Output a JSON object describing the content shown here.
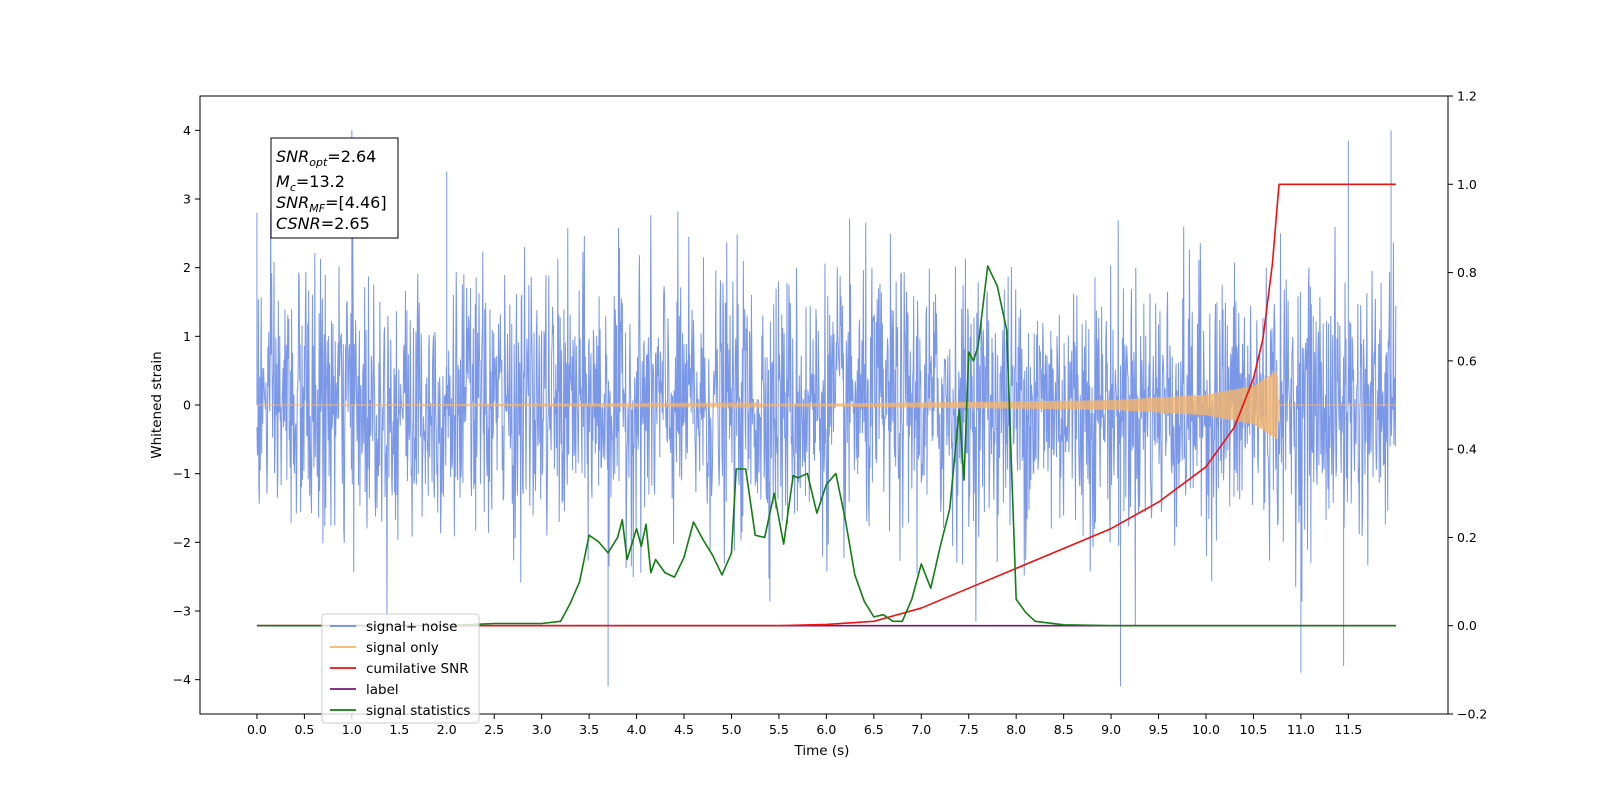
{
  "chart_data": {
    "type": "line",
    "xlabel": "Time (s)",
    "ylabel": "Whitened strain",
    "xlim": [
      -0.6,
      12.55
    ],
    "ylim": [
      -4.5,
      4.5
    ],
    "ylim_right": [
      -0.2,
      1.2
    ],
    "x_ticks": [
      "0.0",
      "0.5",
      "1.0",
      "1.5",
      "2.0",
      "2.5",
      "3.0",
      "3.5",
      "4.0",
      "4.5",
      "5.0",
      "5.5",
      "6.0",
      "6.5",
      "7.0",
      "7.5",
      "8.0",
      "8.5",
      "9.0",
      "9.5",
      "10.0",
      "10.5",
      "11.0",
      "11.5"
    ],
    "y_ticks": [
      "4",
      "3",
      "2",
      "1",
      "0",
      "−1",
      "−2",
      "−3",
      "−4"
    ],
    "y_ticks_right": [
      "1.2",
      "1.0",
      "0.8",
      "0.6",
      "0.4",
      "0.2",
      "0.0",
      "−0.2"
    ],
    "grid": false,
    "legend_position": "lower-left",
    "colors": {
      "signal_noise": "#6f8ee6",
      "signal_only": "#f4b46a",
      "cumulative_snr": "#ee1111",
      "label": "#7a1578",
      "signal_statistics": "#137c13"
    },
    "annotation": {
      "snr_opt_main": "SNR",
      "snr_opt_sub": "opt",
      "snr_opt_value": "=2.64",
      "mc_main": "M",
      "mc_sub": "c",
      "mc_value": "=13.2",
      "snr_mf_main": "SNR",
      "snr_mf_sub": "MF",
      "snr_mf_value": "=[4.46]",
      "csnr_main": "CSNR",
      "csnr_value": "=2.65"
    },
    "series": [
      {
        "name": "signal+ noise",
        "axis": "left",
        "noise_envelope": {
          "x": [
            0.0,
            12.0
          ],
          "typical_upper": 1.9,
          "typical_lower": -1.9
        },
        "notable_peaks": [
          [
            0.0,
            2.8
          ],
          [
            1.0,
            4.0
          ],
          [
            2.0,
            3.4
          ],
          [
            11.5,
            3.85
          ],
          [
            11.95,
            4.0
          ]
        ],
        "notable_troughs": [
          [
            3.7,
            -4.1
          ],
          [
            9.1,
            -4.1
          ],
          [
            11.0,
            -3.9
          ],
          [
            11.45,
            -3.8
          ]
        ]
      },
      {
        "name": "signal only",
        "axis": "left",
        "chirp_points": [
          [
            0.0,
            0.0
          ],
          [
            6.0,
            0.02
          ],
          [
            9.0,
            0.07
          ],
          [
            10.0,
            0.15
          ],
          [
            10.5,
            0.28
          ],
          [
            10.75,
            0.5
          ],
          [
            10.77,
            0.0
          ],
          [
            12.0,
            0.0
          ]
        ]
      },
      {
        "name": "cumilative SNR",
        "axis": "right",
        "points": [
          [
            0.0,
            0.0
          ],
          [
            5.5,
            0.0
          ],
          [
            6.0,
            0.003
          ],
          [
            6.5,
            0.01
          ],
          [
            7.0,
            0.04
          ],
          [
            7.5,
            0.085
          ],
          [
            8.0,
            0.13
          ],
          [
            8.5,
            0.175
          ],
          [
            9.0,
            0.22
          ],
          [
            9.5,
            0.28
          ],
          [
            10.0,
            0.36
          ],
          [
            10.3,
            0.45
          ],
          [
            10.5,
            0.56
          ],
          [
            10.6,
            0.65
          ],
          [
            10.7,
            0.82
          ],
          [
            10.75,
            0.95
          ],
          [
            10.77,
            1.0
          ],
          [
            12.0,
            1.0
          ]
        ]
      },
      {
        "name": "label",
        "axis": "right",
        "points": [
          [
            0.0,
            0.0
          ],
          [
            12.0,
            0.0
          ]
        ]
      },
      {
        "name": "signal statistics",
        "axis": "right",
        "points": [
          [
            0.0,
            0.0
          ],
          [
            0.5,
            0.0
          ],
          [
            1.0,
            0.0
          ],
          [
            2.0,
            0.0
          ],
          [
            2.5,
            0.005
          ],
          [
            3.0,
            0.005
          ],
          [
            3.2,
            0.01
          ],
          [
            3.3,
            0.05
          ],
          [
            3.4,
            0.1
          ],
          [
            3.5,
            0.205
          ],
          [
            3.6,
            0.19
          ],
          [
            3.7,
            0.165
          ],
          [
            3.8,
            0.2
          ],
          [
            3.85,
            0.24
          ],
          [
            3.9,
            0.15
          ],
          [
            4.0,
            0.22
          ],
          [
            4.05,
            0.18
          ],
          [
            4.1,
            0.23
          ],
          [
            4.15,
            0.12
          ],
          [
            4.2,
            0.15
          ],
          [
            4.3,
            0.12
          ],
          [
            4.4,
            0.11
          ],
          [
            4.5,
            0.155
          ],
          [
            4.6,
            0.235
          ],
          [
            4.7,
            0.195
          ],
          [
            4.8,
            0.16
          ],
          [
            4.9,
            0.115
          ],
          [
            5.0,
            0.165
          ],
          [
            5.05,
            0.355
          ],
          [
            5.15,
            0.355
          ],
          [
            5.25,
            0.205
          ],
          [
            5.35,
            0.2
          ],
          [
            5.45,
            0.3
          ],
          [
            5.55,
            0.185
          ],
          [
            5.65,
            0.34
          ],
          [
            5.7,
            0.335
          ],
          [
            5.8,
            0.345
          ],
          [
            5.9,
            0.255
          ],
          [
            6.0,
            0.32
          ],
          [
            6.1,
            0.345
          ],
          [
            6.2,
            0.24
          ],
          [
            6.3,
            0.115
          ],
          [
            6.4,
            0.055
          ],
          [
            6.5,
            0.02
          ],
          [
            6.6,
            0.025
          ],
          [
            6.7,
            0.01
          ],
          [
            6.8,
            0.01
          ],
          [
            6.9,
            0.06
          ],
          [
            7.0,
            0.14
          ],
          [
            7.1,
            0.085
          ],
          [
            7.2,
            0.18
          ],
          [
            7.3,
            0.265
          ],
          [
            7.4,
            0.49
          ],
          [
            7.45,
            0.33
          ],
          [
            7.5,
            0.62
          ],
          [
            7.55,
            0.6
          ],
          [
            7.6,
            0.635
          ],
          [
            7.7,
            0.815
          ],
          [
            7.8,
            0.77
          ],
          [
            7.9,
            0.67
          ],
          [
            8.0,
            0.06
          ],
          [
            8.1,
            0.03
          ],
          [
            8.2,
            0.01
          ],
          [
            8.5,
            0.002
          ],
          [
            9.0,
            0.0
          ],
          [
            10.0,
            0.0
          ],
          [
            11.0,
            0.0
          ],
          [
            12.0,
            0.0
          ]
        ]
      }
    ]
  }
}
